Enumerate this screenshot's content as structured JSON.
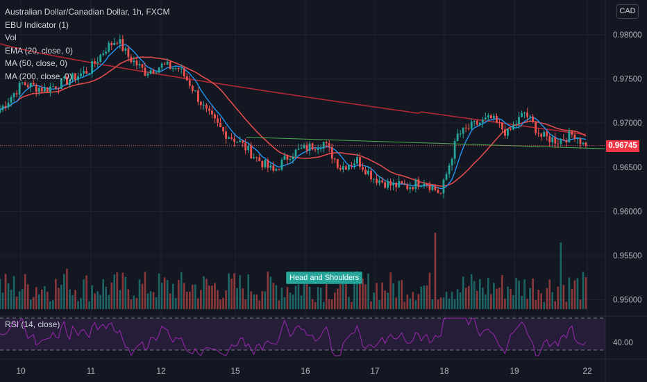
{
  "legend": {
    "symbol": "Australian Dollar/Canadian Dollar, 1h, FXCM",
    "ebu": "EBU Indicator (1)",
    "vol": "Vol",
    "ema": "EMA (20, close, 0)",
    "ma50": "MA (50, close, 0)",
    "ma200": "MA (200, close, 0)"
  },
  "currency": "CAD",
  "last_price": "0.96745",
  "pattern_label": "Head and Shoulders",
  "rsi_label": "RSI (14, close)",
  "colors": {
    "up": "#26a69a",
    "down": "#ef5350",
    "ema": "#2196f3",
    "ma200": "#b22833",
    "ma50": "#e04b4b",
    "rsi": "#9c27b0",
    "neckline": "#4caf50",
    "bg": "#131722",
    "grid": "#1f2330"
  },
  "chart_data": {
    "type": "candlestick",
    "price_axis": {
      "ticks": [
        "0.98000",
        "0.97500",
        "0.97000",
        "0.96500",
        "0.96000",
        "0.95500",
        "0.95000"
      ],
      "ylim": [
        0.9495,
        0.9835
      ]
    },
    "rsi_axis": {
      "ticks": [
        "40.00"
      ],
      "bands": [
        30,
        70
      ]
    },
    "x_ticks": [
      "10",
      "11",
      "12",
      "15",
      "16",
      "17",
      "18",
      "19",
      "22"
    ],
    "anchors": [
      [
        0,
        0.9715
      ],
      [
        8,
        0.9745
      ],
      [
        16,
        0.9738
      ],
      [
        24,
        0.9748
      ],
      [
        32,
        0.976
      ],
      [
        38,
        0.9785
      ],
      [
        42,
        0.9795
      ],
      [
        46,
        0.9775
      ],
      [
        52,
        0.9758
      ],
      [
        58,
        0.9765
      ],
      [
        64,
        0.9762
      ],
      [
        68,
        0.9745
      ],
      [
        74,
        0.9712
      ],
      [
        80,
        0.969
      ],
      [
        86,
        0.9678
      ],
      [
        92,
        0.966
      ],
      [
        98,
        0.9645
      ],
      [
        104,
        0.9665
      ],
      [
        110,
        0.9672
      ],
      [
        116,
        0.9678
      ],
      [
        122,
        0.965
      ],
      [
        128,
        0.9658
      ],
      [
        134,
        0.9638
      ],
      [
        140,
        0.963
      ],
      [
        146,
        0.9628
      ],
      [
        152,
        0.9635
      ],
      [
        158,
        0.962
      ],
      [
        164,
        0.9686
      ],
      [
        170,
        0.9698
      ],
      [
        176,
        0.9705
      ],
      [
        182,
        0.9688
      ],
      [
        188,
        0.9712
      ],
      [
        194,
        0.9685
      ],
      [
        200,
        0.968
      ],
      [
        206,
        0.9688
      ],
      [
        210,
        0.9672
      ]
    ],
    "pattern": "Head and Shoulders",
    "last": 0.96745
  }
}
